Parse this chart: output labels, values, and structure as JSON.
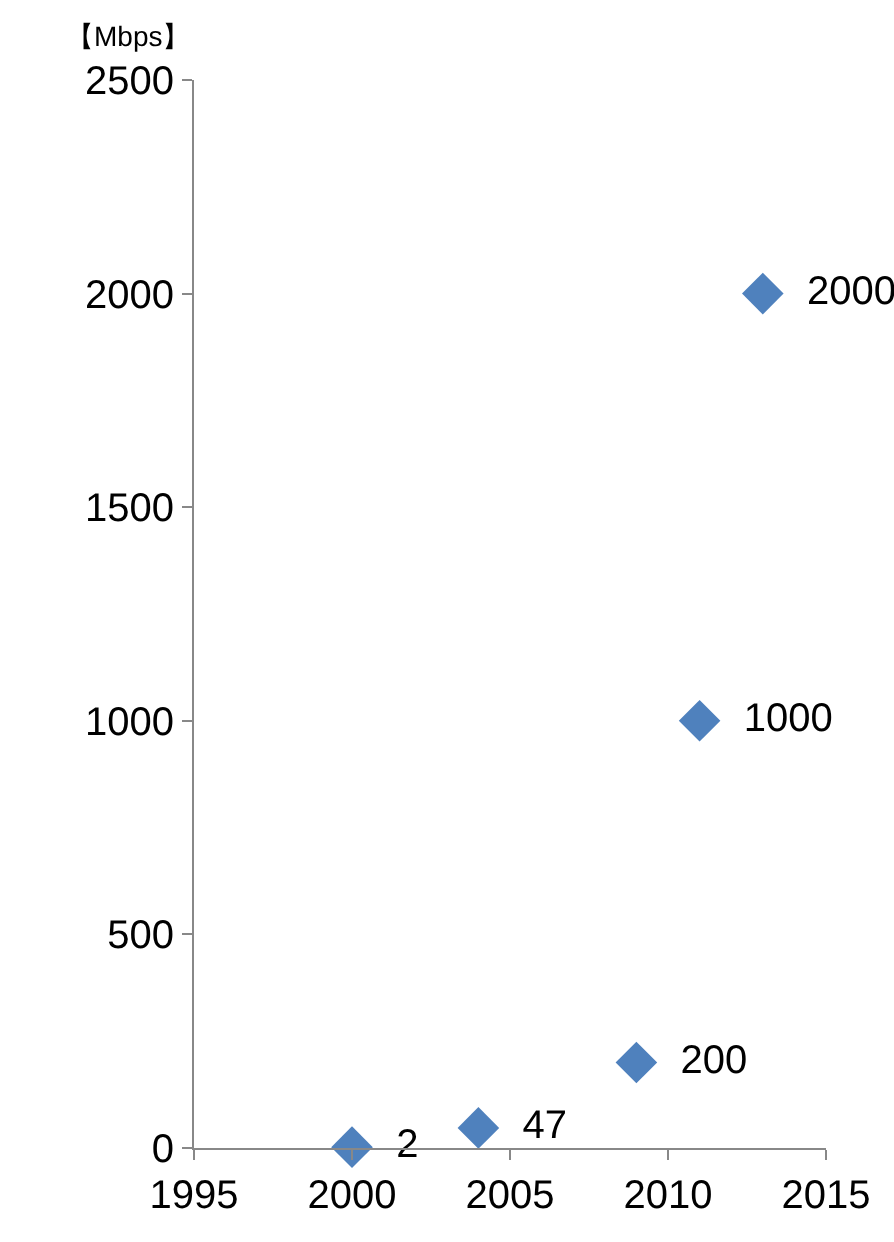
{
  "chart_data": {
    "type": "scatter",
    "ylabel": "【Mbps】",
    "x": [
      2000,
      2004,
      2009,
      2011,
      2013
    ],
    "series": [
      {
        "color": "#4f81bd",
        "values": [
          2,
          47,
          200,
          1000,
          2000
        ]
      }
    ],
    "data_labels": true,
    "marker": "diamond",
    "xlim": [
      1995,
      2015
    ],
    "xticks": [
      1995,
      2000,
      2005,
      2010,
      2015
    ],
    "ylim": [
      0,
      2500
    ],
    "yticks": [
      0,
      500,
      1000,
      1500,
      2000,
      2500
    ]
  }
}
